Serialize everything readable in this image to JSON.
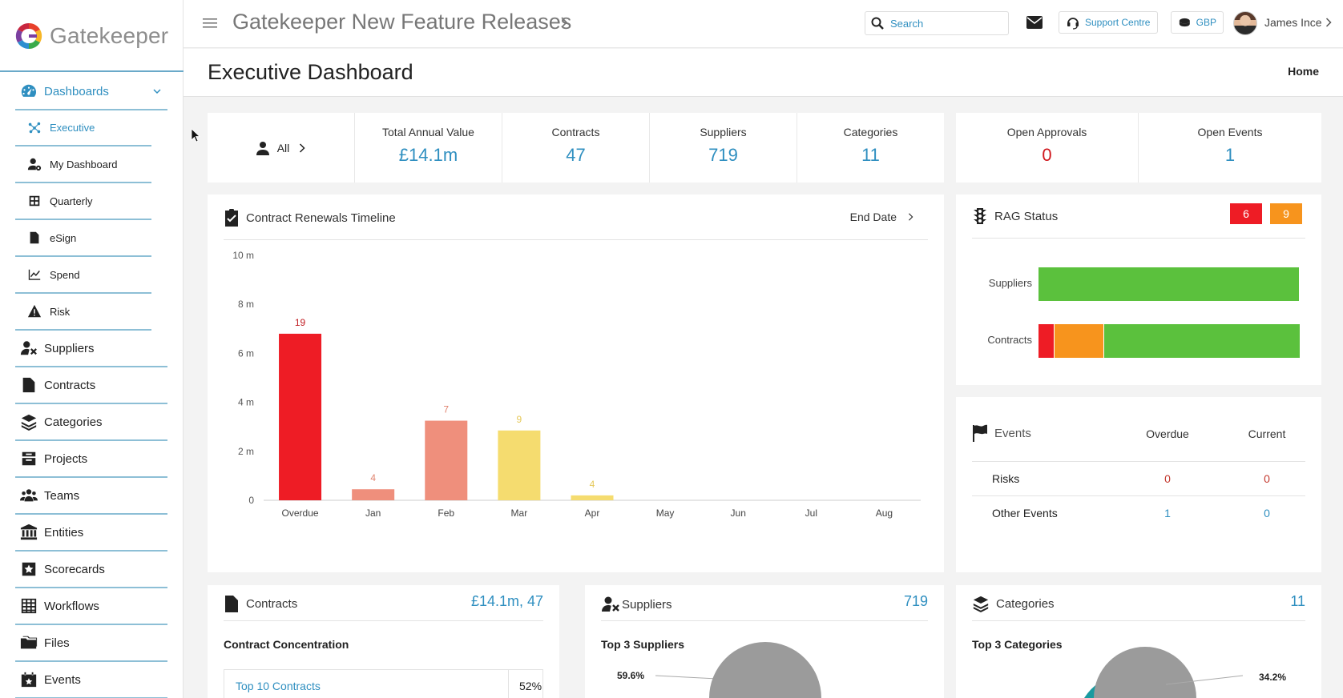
{
  "app": {
    "logo_text": "Gatekeeper"
  },
  "topbar": {
    "title": "Gatekeeper New Feature Releases",
    "search_placeholder": "Search",
    "support_label": "Support Centre",
    "currency_label": "GBP",
    "user_name": "James Ince"
  },
  "page": {
    "title": "Executive Dashboard",
    "breadcrumb_home": "Home"
  },
  "sidebar": {
    "dashboards_label": "Dashboards",
    "sub_items": [
      {
        "label": "Executive",
        "icon": "network-icon"
      },
      {
        "label": "My Dashboard",
        "icon": "user-gear-icon"
      },
      {
        "label": "Quarterly",
        "icon": "grid-icon"
      },
      {
        "label": "eSign",
        "icon": "file-sign-icon"
      },
      {
        "label": "Spend",
        "icon": "line-chart-icon"
      },
      {
        "label": "Risk",
        "icon": "warning-icon"
      }
    ],
    "items": [
      {
        "label": "Suppliers",
        "icon": "supplier-icon"
      },
      {
        "label": "Contracts",
        "icon": "contract-icon"
      },
      {
        "label": "Categories",
        "icon": "layers-icon"
      },
      {
        "label": "Projects",
        "icon": "projects-icon"
      },
      {
        "label": "Teams",
        "icon": "team-icon"
      },
      {
        "label": "Entities",
        "icon": "bank-icon"
      },
      {
        "label": "Scorecards",
        "icon": "scorecard-icon"
      },
      {
        "label": "Workflows",
        "icon": "workflow-icon"
      },
      {
        "label": "Files",
        "icon": "folder-icon"
      },
      {
        "label": "Events",
        "icon": "calendar-icon"
      }
    ]
  },
  "stats": {
    "filter_label": "All",
    "total_annual_value_label": "Total Annual Value",
    "total_annual_value": "£14.1m",
    "contracts_label": "Contracts",
    "contracts": "47",
    "suppliers_label": "Suppliers",
    "suppliers": "719",
    "categories_label": "Categories",
    "categories": "11",
    "open_approvals_label": "Open Approvals",
    "open_approvals": "0",
    "open_events_label": "Open Events",
    "open_events": "1"
  },
  "renewals": {
    "title": "Contract Renewals Timeline",
    "sort_label": "End Date"
  },
  "chart_data": {
    "type": "bar",
    "title": "Contract Renewals Timeline",
    "categories": [
      "Overdue",
      "Jan",
      "Feb",
      "Mar",
      "Apr",
      "May",
      "Jun",
      "Jul",
      "Aug"
    ],
    "values": [
      6.8,
      0.45,
      3.25,
      2.85,
      0.2,
      0,
      0,
      0,
      0
    ],
    "counts": [
      "19",
      "4",
      "7",
      "9",
      "4",
      "",
      "",
      "",
      ""
    ],
    "colors": [
      "#ee1c25",
      "#ef8f7c",
      "#ef8f7c",
      "#f5dc6f",
      "#f5dc6f",
      "",
      "",
      "",
      ""
    ],
    "label_colors": [
      "#c01b20",
      "#e0836f",
      "#e0836f",
      "#e6c95a",
      "#e6c95a",
      "",
      "",
      "",
      ""
    ],
    "y_ticks": [
      "0",
      "2 m",
      "4 m",
      "6 m",
      "8 m",
      "10 m"
    ],
    "ylim": [
      0,
      10
    ]
  },
  "rag": {
    "title": "RAG Status",
    "red_count": "6",
    "amber_count": "9",
    "colors": {
      "red": "#ee1c25",
      "amber": "#f7941d",
      "green": "#5bc13d"
    },
    "rows": [
      {
        "label": "Suppliers",
        "red": 0,
        "amber": 0,
        "green": 1
      },
      {
        "label": "Contracts",
        "red": 0.06,
        "amber": 0.19,
        "green": 0.75
      }
    ]
  },
  "events": {
    "title": "Events",
    "col_overdue": "Overdue",
    "col_current": "Current",
    "rows": [
      {
        "label": "Risks",
        "overdue": "0",
        "current": "0"
      },
      {
        "label": "Other Events",
        "overdue": "1",
        "current": "0"
      }
    ]
  },
  "contracts_panel": {
    "title": "Contracts",
    "summary": "£14.1m, 47",
    "subtitle": "Contract Concentration",
    "row_label": "Top 10 Contracts",
    "row_value": "52%"
  },
  "suppliers_panel": {
    "title": "Suppliers",
    "summary": "719",
    "subtitle": "Top 3 Suppliers",
    "pie_label": "59.6%"
  },
  "categories_panel": {
    "title": "Categories",
    "summary": "11",
    "subtitle": "Top 3 Categories",
    "pie_label": "34.2%"
  }
}
